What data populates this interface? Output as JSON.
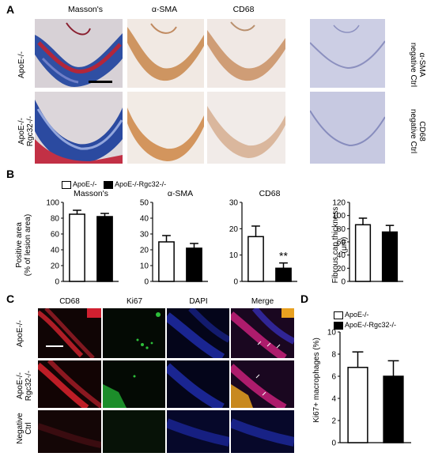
{
  "panel_a": {
    "letter": "A",
    "columns": [
      "Masson's",
      "α-SMA",
      "CD68"
    ],
    "rows": [
      {
        "label_lines": [
          "ApoE-/-"
        ]
      },
      {
        "label_lines": [
          "ApoE-/-",
          "Rgc32-/-"
        ]
      }
    ],
    "neg_ctrl": [
      {
        "label_lines": [
          "α-SMA",
          "negative Ctrl"
        ]
      },
      {
        "label_lines": [
          "CD68",
          "negative Ctrl"
        ]
      }
    ],
    "tile_colors": {
      "masson_bg": "#d9d4d8",
      "masson_blue": "#2f4fa3",
      "masson_red": "#b2263a",
      "ihc_bg": "#efe6e0",
      "ihc_brown": "#c8864a",
      "ihc_blue": "#9fa6c9",
      "neg_bg": "#c9cbe2",
      "neg_stroke": "#8c90bf"
    }
  },
  "panel_b": {
    "letter": "B",
    "legend": [
      "ApoE-/-",
      "ApoE-/-Rgc32-/-"
    ],
    "ylabel_left_lines": [
      "Positive area",
      "(% of lesion area)"
    ],
    "ylabel_right_lines": [
      "Fibrous cap thickness",
      "(μm)"
    ]
  },
  "panel_c": {
    "letter": "C",
    "columns": [
      "CD68",
      "Ki67",
      "DAPI",
      "Merge"
    ],
    "rows": [
      {
        "label_lines": [
          "ApoE-/-"
        ]
      },
      {
        "label_lines": [
          "ApoE-/-",
          "Rgc32-/-"
        ]
      },
      {
        "label_lines": [
          "Negative",
          "Ctrl"
        ]
      }
    ],
    "tile_colors": {
      "cd68": "#e0202a",
      "ki67": "#27c43a",
      "dapi": "#2433c4",
      "merge_a": "#c8207a",
      "merge_b": "#e8a020"
    }
  },
  "panel_d": {
    "letter": "D",
    "legend": [
      "ApoE-/-",
      "ApoE-/-Rgc32-/-"
    ]
  },
  "chart_data": [
    {
      "type": "bar",
      "title": "Masson's",
      "categories": [
        "ApoE-/-",
        "ApoE-/-Rgc32-/-"
      ],
      "values": [
        85,
        82
      ],
      "errors": [
        5,
        4
      ],
      "ylabel": "Positive area (% of lesion area)",
      "ylim": [
        0,
        100
      ],
      "yticks": [
        0,
        20,
        40,
        60,
        80,
        100
      ],
      "annotations": []
    },
    {
      "type": "bar",
      "title": "α-SMA",
      "categories": [
        "ApoE-/-",
        "ApoE-/-Rgc32-/-"
      ],
      "values": [
        25,
        21
      ],
      "errors": [
        4,
        3
      ],
      "ylim": [
        0,
        50
      ],
      "yticks": [
        0,
        10,
        20,
        30,
        40,
        50
      ],
      "annotations": []
    },
    {
      "type": "bar",
      "title": "CD68",
      "categories": [
        "ApoE-/-",
        "ApoE-/-Rgc32-/-"
      ],
      "values": [
        17,
        5
      ],
      "errors": [
        4,
        2
      ],
      "ylim": [
        0,
        30
      ],
      "yticks": [
        0,
        10,
        20,
        30
      ],
      "annotations": [
        "**"
      ]
    },
    {
      "type": "bar",
      "title": "",
      "categories": [
        "ApoE-/-",
        "ApoE-/-Rgc32-/-"
      ],
      "values": [
        86,
        75
      ],
      "errors": [
        10,
        10
      ],
      "ylabel": "Fibrous cap thickness (μm)",
      "ylim": [
        0,
        120
      ],
      "yticks": [
        0,
        20,
        40,
        60,
        80,
        100,
        120
      ],
      "annotations": []
    },
    {
      "type": "bar",
      "title": "",
      "categories": [
        "ApoE-/-",
        "ApoE-/-Rgc32-/-"
      ],
      "values": [
        6.8,
        6.0
      ],
      "errors": [
        1.4,
        1.4
      ],
      "ylabel": "Ki67+ macrophages (%)",
      "ylim": [
        0,
        10
      ],
      "yticks": [
        0,
        2,
        4,
        6,
        8,
        10
      ],
      "annotations": []
    }
  ]
}
